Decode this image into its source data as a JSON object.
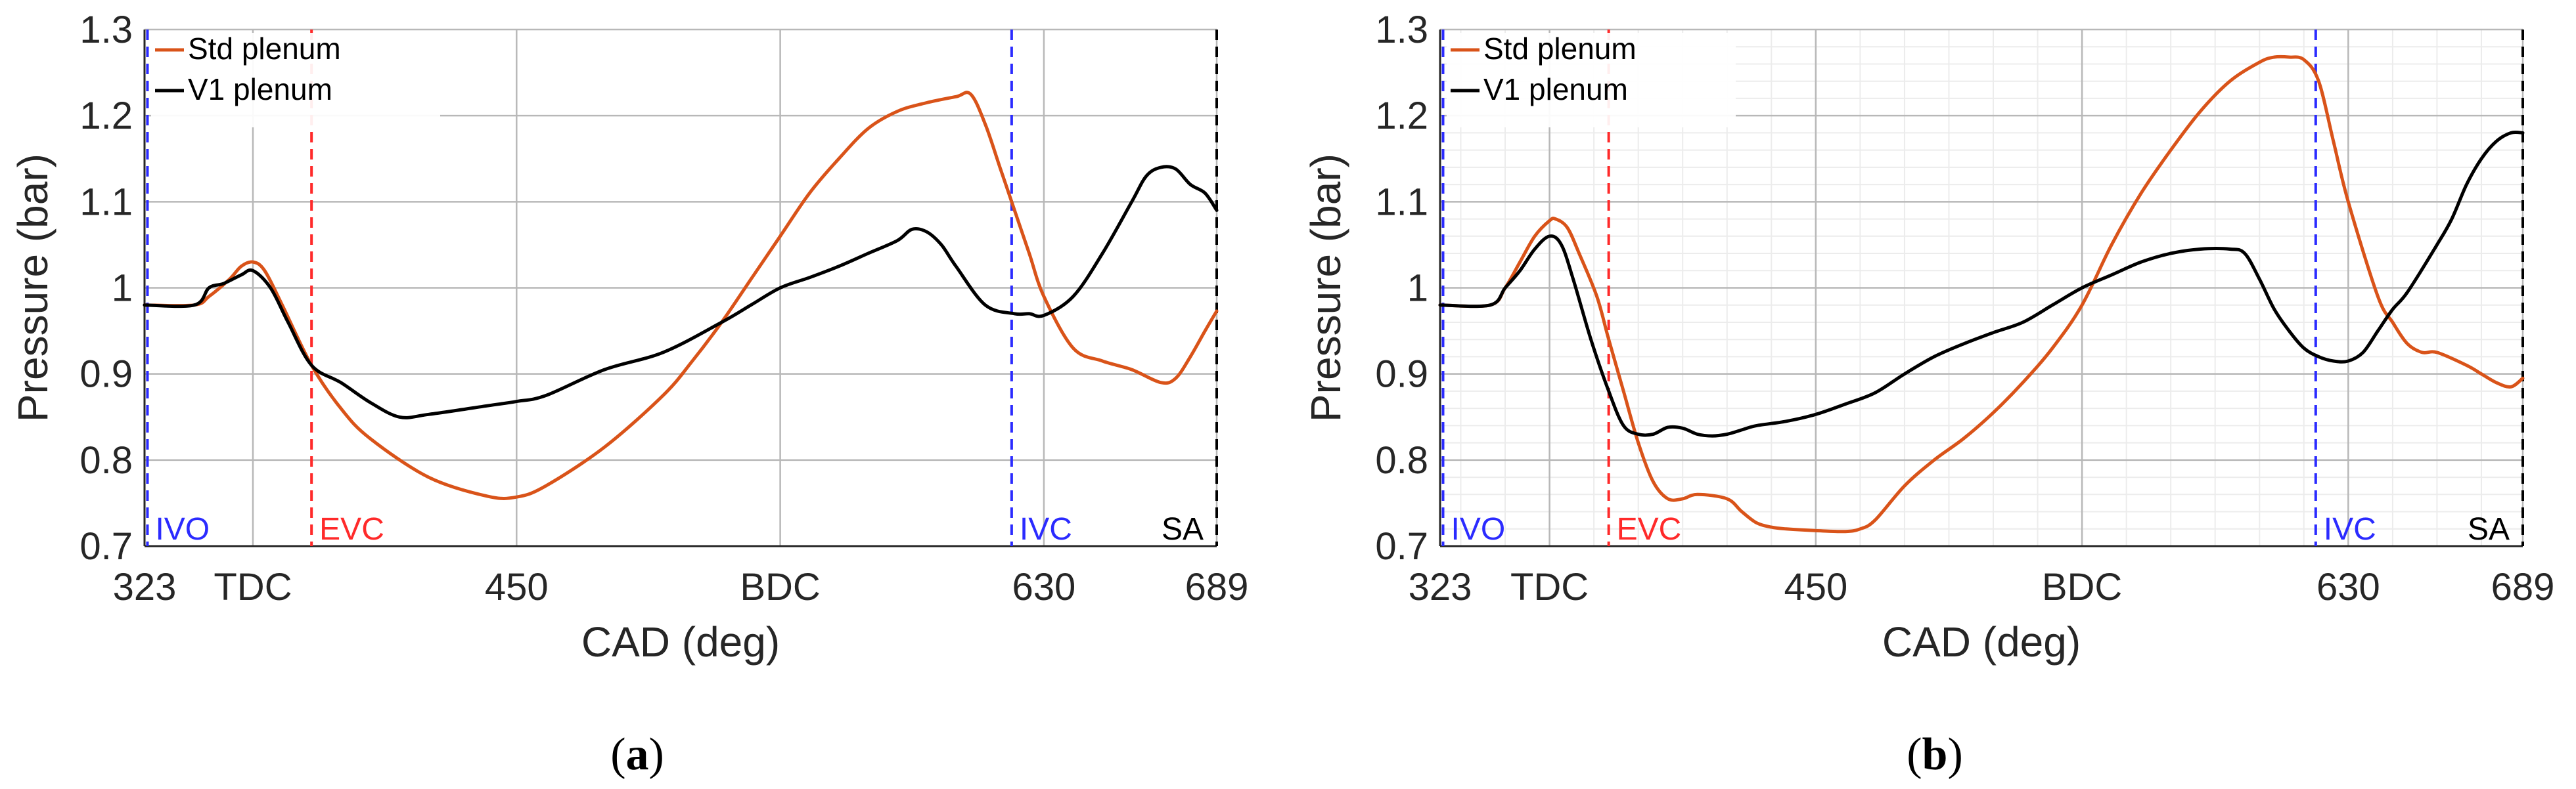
{
  "colors": {
    "std": "#d95319",
    "v1": "#000000",
    "ivo": "#2b2bff",
    "evc": "#ff2a2a",
    "sa": "#000000",
    "grid_major": "#b8b8b8",
    "grid_minor": "#ececec"
  },
  "chart_data": [
    {
      "type": "line",
      "panel_label": "(a)",
      "bold_letter": "a",
      "xlabel": "CAD (deg)",
      "ylabel": "Pressure (bar)",
      "xlim": [
        323,
        689
      ],
      "ylim": [
        0.7,
        1.3
      ],
      "minor_grid": false,
      "xticks": [
        {
          "v": 323,
          "label": "323"
        },
        {
          "v": 360,
          "label": "TDC"
        },
        {
          "v": 450,
          "label": "450"
        },
        {
          "v": 540,
          "label": "BDC"
        },
        {
          "v": 630,
          "label": "630"
        },
        {
          "v": 689,
          "label": "689"
        }
      ],
      "yticks": [
        {
          "v": 0.7,
          "label": "0.7"
        },
        {
          "v": 0.8,
          "label": "0.8"
        },
        {
          "v": 0.9,
          "label": "0.9"
        },
        {
          "v": 1.0,
          "label": "1"
        },
        {
          "v": 1.1,
          "label": "1.1"
        },
        {
          "v": 1.2,
          "label": "1.2"
        },
        {
          "v": 1.3,
          "label": "1.3"
        }
      ],
      "events": [
        {
          "name": "IVO",
          "x": 324,
          "color_key": "ivo",
          "label_side": "right"
        },
        {
          "name": "EVC",
          "x": 380,
          "color_key": "evc",
          "label_side": "right"
        },
        {
          "name": "IVC",
          "x": 619,
          "color_key": "ivo",
          "label_side": "right"
        },
        {
          "name": "SA",
          "x": 689,
          "color_key": "sa",
          "label_side": "left"
        }
      ],
      "legend": [
        "Std plenum",
        "V1 plenum"
      ],
      "series": [
        {
          "name": "Std plenum",
          "color_key": "std",
          "x": [
            323,
            340,
            345,
            352,
            356,
            360,
            364,
            370,
            380,
            390,
            400,
            420,
            440,
            450,
            460,
            480,
            500,
            510,
            520,
            530,
            540,
            550,
            560,
            570,
            580,
            590,
            600,
            605,
            610,
            615,
            620,
            625,
            630,
            640,
            650,
            660,
            670,
            675,
            680,
            685,
            689
          ],
          "y": [
            0.98,
            0.98,
            0.99,
            1.01,
            1.025,
            1.03,
            1.02,
            0.98,
            0.91,
            0.86,
            0.825,
            0.78,
            0.758,
            0.757,
            0.77,
            0.815,
            0.875,
            0.915,
            0.96,
            1.01,
            1.06,
            1.11,
            1.15,
            1.185,
            1.205,
            1.215,
            1.222,
            1.225,
            1.19,
            1.14,
            1.09,
            1.04,
            0.99,
            0.93,
            0.915,
            0.905,
            0.89,
            0.895,
            0.92,
            0.95,
            0.973
          ]
        },
        {
          "name": "V1 plenum",
          "color_key": "v1",
          "x": [
            323,
            340,
            345,
            350,
            356,
            360,
            366,
            372,
            380,
            390,
            400,
            410,
            420,
            440,
            450,
            460,
            480,
            500,
            520,
            530,
            540,
            550,
            560,
            570,
            580,
            585,
            590,
            595,
            600,
            610,
            620,
            625,
            630,
            640,
            650,
            660,
            665,
            670,
            675,
            680,
            685,
            689
          ],
          "y": [
            0.98,
            0.98,
            1.0,
            1.005,
            1.015,
            1.02,
            1.0,
            0.96,
            0.91,
            0.89,
            0.867,
            0.85,
            0.853,
            0.863,
            0.868,
            0.875,
            0.905,
            0.925,
            0.96,
            0.98,
            1.0,
            1.012,
            1.025,
            1.04,
            1.055,
            1.068,
            1.065,
            1.05,
            1.025,
            0.98,
            0.97,
            0.97,
            0.968,
            0.99,
            1.04,
            1.1,
            1.13,
            1.14,
            1.138,
            1.12,
            1.11,
            1.09
          ]
        }
      ]
    },
    {
      "type": "line",
      "panel_label": "(b)",
      "bold_letter": "b",
      "xlabel": "CAD (deg)",
      "ylabel": "Pressure (bar)",
      "xlim": [
        323,
        689
      ],
      "ylim": [
        0.7,
        1.3
      ],
      "minor_grid": true,
      "xticks": [
        {
          "v": 323,
          "label": "323"
        },
        {
          "v": 360,
          "label": "TDC"
        },
        {
          "v": 450,
          "label": "450"
        },
        {
          "v": 540,
          "label": "BDC"
        },
        {
          "v": 630,
          "label": "630"
        },
        {
          "v": 689,
          "label": "689"
        }
      ],
      "yticks": [
        {
          "v": 0.7,
          "label": "0.7"
        },
        {
          "v": 0.8,
          "label": "0.8"
        },
        {
          "v": 0.9,
          "label": "0.9"
        },
        {
          "v": 1.0,
          "label": "1"
        },
        {
          "v": 1.1,
          "label": "1.1"
        },
        {
          "v": 1.2,
          "label": "1.2"
        },
        {
          "v": 1.3,
          "label": "1.3"
        }
      ],
      "events": [
        {
          "name": "IVO",
          "x": 324,
          "color_key": "ivo",
          "label_side": "right"
        },
        {
          "name": "EVC",
          "x": 380,
          "color_key": "evc",
          "label_side": "right"
        },
        {
          "name": "IVC",
          "x": 619,
          "color_key": "ivo",
          "label_side": "right"
        },
        {
          "name": "SA",
          "x": 689,
          "color_key": "sa",
          "label_side": "left"
        }
      ],
      "legend": [
        "Std plenum",
        "V1 plenum"
      ],
      "series": [
        {
          "name": "Std plenum",
          "color_key": "std",
          "x": [
            323,
            340,
            345,
            350,
            355,
            360,
            362,
            366,
            370,
            376,
            380,
            385,
            390,
            395,
            400,
            405,
            410,
            420,
            425,
            430,
            435,
            440,
            450,
            460,
            465,
            470,
            480,
            490,
            500,
            510,
            520,
            530,
            540,
            550,
            560,
            570,
            580,
            590,
            600,
            605,
            610,
            615,
            620,
            625,
            630,
            640,
            645,
            650,
            655,
            660,
            670,
            675,
            680,
            685,
            689
          ],
          "y": [
            0.98,
            0.98,
            1.0,
            1.03,
            1.06,
            1.078,
            1.08,
            1.07,
            1.04,
            0.99,
            0.94,
            0.88,
            0.82,
            0.775,
            0.755,
            0.755,
            0.76,
            0.755,
            0.74,
            0.727,
            0.722,
            0.72,
            0.718,
            0.717,
            0.72,
            0.73,
            0.77,
            0.8,
            0.825,
            0.855,
            0.89,
            0.93,
            0.98,
            1.05,
            1.11,
            1.16,
            1.205,
            1.24,
            1.262,
            1.268,
            1.268,
            1.265,
            1.24,
            1.17,
            1.1,
            0.99,
            0.96,
            0.935,
            0.925,
            0.925,
            0.91,
            0.9,
            0.89,
            0.885,
            0.895
          ]
        },
        {
          "name": "V1 plenum",
          "color_key": "v1",
          "x": [
            323,
            340,
            345,
            350,
            355,
            360,
            364,
            368,
            374,
            380,
            385,
            390,
            395,
            400,
            405,
            410,
            415,
            420,
            425,
            430,
            440,
            450,
            460,
            470,
            480,
            490,
            500,
            510,
            520,
            530,
            540,
            550,
            560,
            570,
            580,
            590,
            595,
            600,
            605,
            610,
            615,
            620,
            625,
            630,
            635,
            640,
            645,
            650,
            660,
            665,
            670,
            675,
            680,
            685,
            689
          ],
          "y": [
            0.98,
            0.98,
            1.0,
            1.02,
            1.045,
            1.06,
            1.05,
            1.01,
            0.94,
            0.88,
            0.84,
            0.83,
            0.83,
            0.838,
            0.837,
            0.83,
            0.828,
            0.83,
            0.835,
            0.84,
            0.845,
            0.853,
            0.865,
            0.878,
            0.9,
            0.92,
            0.935,
            0.948,
            0.96,
            0.98,
            1.0,
            1.015,
            1.03,
            1.04,
            1.045,
            1.045,
            1.04,
            1.01,
            0.975,
            0.95,
            0.93,
            0.92,
            0.915,
            0.915,
            0.925,
            0.95,
            0.975,
            0.995,
            1.05,
            1.08,
            1.12,
            1.15,
            1.17,
            1.18,
            1.18
          ]
        }
      ]
    }
  ]
}
